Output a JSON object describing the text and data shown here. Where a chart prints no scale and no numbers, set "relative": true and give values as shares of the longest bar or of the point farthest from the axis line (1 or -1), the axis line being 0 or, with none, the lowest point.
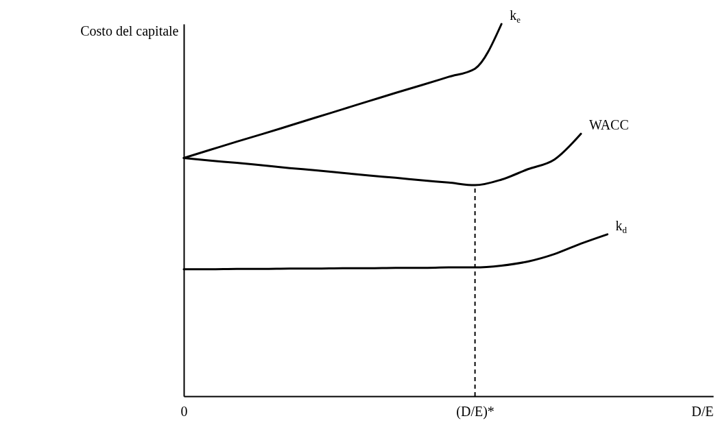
{
  "chart_data": {
    "type": "line",
    "relative": true,
    "xlabel": "D/E",
    "ylabel": "Costo del capitale",
    "categories": [
      "0",
      null,
      null,
      null,
      null,
      null,
      null,
      null,
      null,
      null,
      null,
      "(D/E)*",
      null,
      null,
      null,
      null,
      null,
      null,
      null,
      null,
      null
    ],
    "series": [
      {
        "name": "k$_{e}$",
        "color": "#000000",
        "values": [
          0.64,
          0.662,
          0.684,
          0.705,
          0.727,
          0.749,
          0.771,
          0.793,
          0.815,
          0.836,
          0.858,
          0.88,
          1.0,
          null,
          null,
          null,
          null,
          null,
          null,
          null,
          null
        ]
      },
      {
        "name": "WACC",
        "color": "#000000",
        "values": [
          0.64,
          0.633,
          0.627,
          0.62,
          0.613,
          0.607,
          0.6,
          0.593,
          0.587,
          0.58,
          0.574,
          0.567,
          0.582,
          0.61,
          0.636,
          0.705,
          null,
          null,
          null,
          null,
          null
        ]
      },
      {
        "name": "k$_{d}$",
        "color": "#000000",
        "values": [
          0.341,
          0.341,
          0.342,
          0.342,
          0.343,
          0.343,
          0.344,
          0.344,
          0.345,
          0.345,
          0.346,
          0.346,
          0.351,
          0.362,
          0.382,
          0.41,
          0.435,
          null,
          null,
          null,
          null
        ]
      }
    ],
    "ref_lines": [
      {
        "axis": "x",
        "value": "(D/E)*",
        "line_style": "dashed"
      }
    ]
  }
}
